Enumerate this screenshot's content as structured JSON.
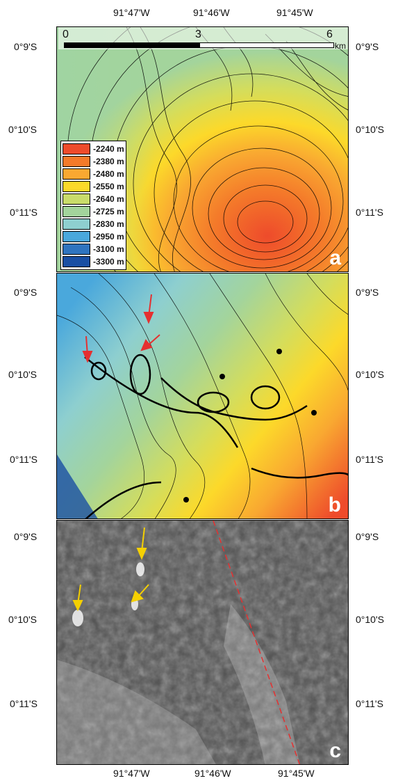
{
  "top_longitude_labels": [
    "91°47'W",
    "91°46'W",
    "91°45'W"
  ],
  "bottom_longitude_labels": [
    "91°47'W",
    "91°46'W",
    "91°45'W"
  ],
  "latitude_labels": [
    "0°9'S",
    "0°10'S",
    "0°11'S"
  ],
  "scale_bar": {
    "ticks": [
      "0",
      "3",
      "6"
    ],
    "unit": "km"
  },
  "legend": {
    "items": [
      {
        "label": "-2240 m",
        "color": "#ee4b2b"
      },
      {
        "label": "-2380 m",
        "color": "#f47a2a"
      },
      {
        "label": "-2480 m",
        "color": "#f9a831"
      },
      {
        "label": "-2550 m",
        "color": "#fcd92a"
      },
      {
        "label": "-2640 m",
        "color": "#c9dc6a"
      },
      {
        "label": "-2725 m",
        "color": "#a3d49c"
      },
      {
        "label": "-2830 m",
        "color": "#8ecfcf"
      },
      {
        "label": "-2950 m",
        "color": "#4aa8dc"
      },
      {
        "label": "-3100 m",
        "color": "#2f74bf"
      },
      {
        "label": "-3300 m",
        "color": "#1a4fa3"
      }
    ]
  },
  "panels": {
    "a": "a",
    "b": "b",
    "c": "c"
  }
}
